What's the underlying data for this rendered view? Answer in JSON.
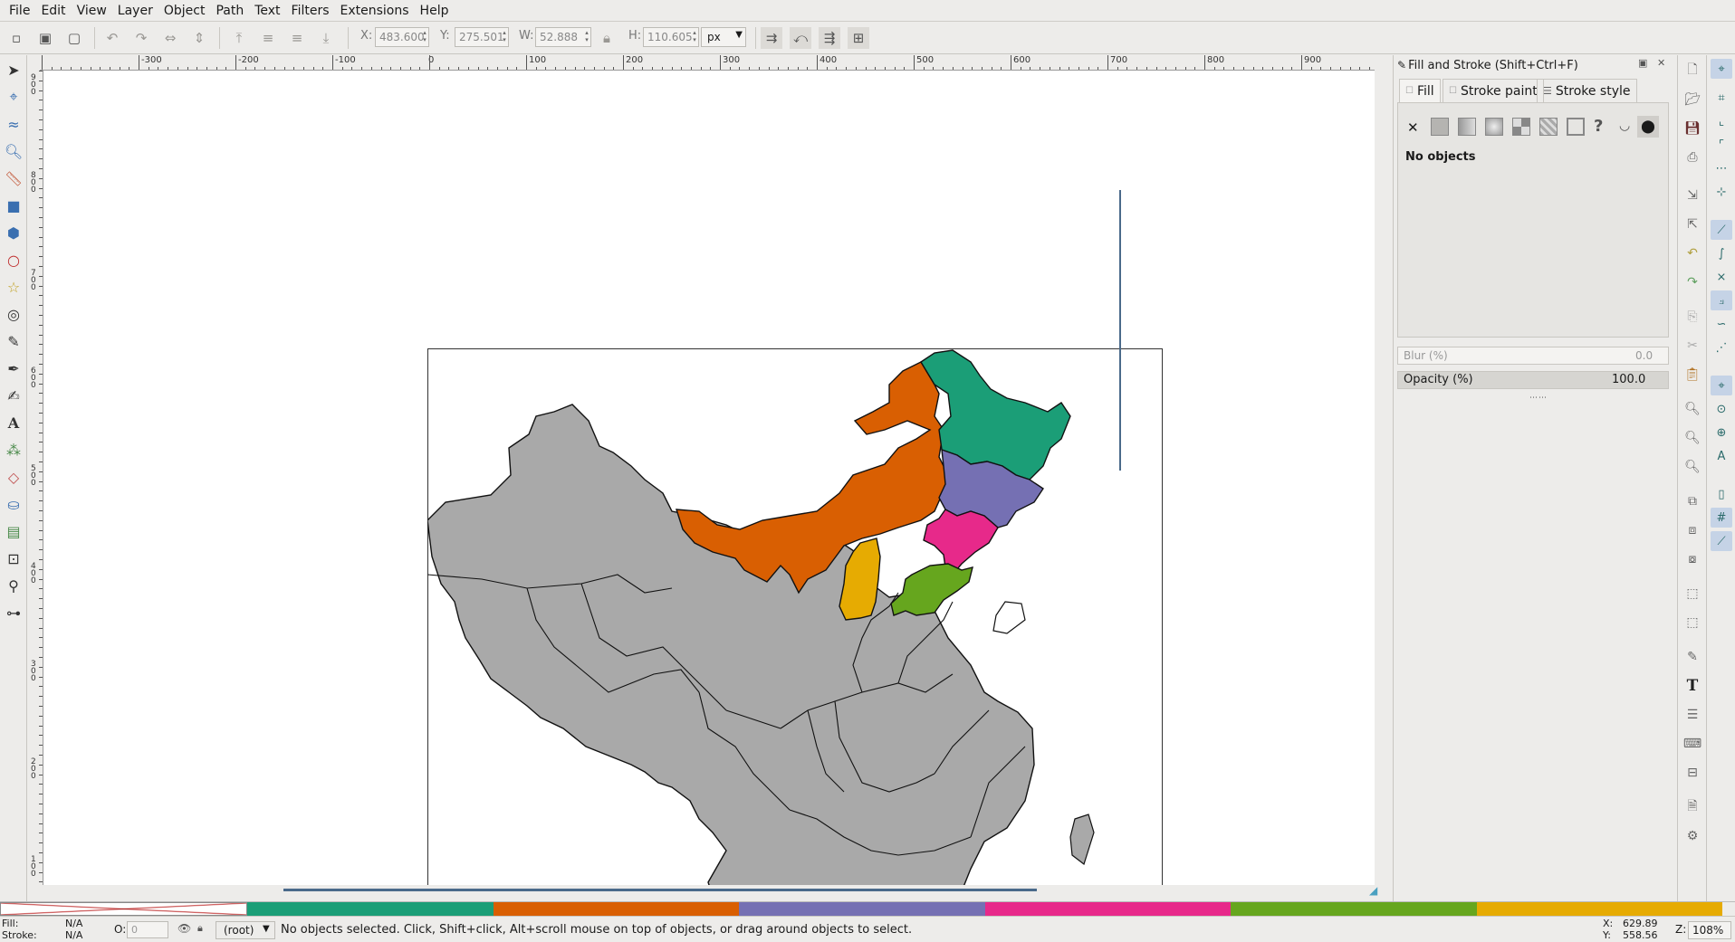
{
  "menubar": {
    "items": [
      "File",
      "Edit",
      "View",
      "Layer",
      "Object",
      "Path",
      "Text",
      "Filters",
      "Extensions",
      "Help"
    ]
  },
  "controls": {
    "x_label": "X:",
    "x_value": "483.600",
    "y_label": "Y:",
    "y_value": "275.501",
    "w_label": "W:",
    "w_value": "52.888",
    "h_label": "H:",
    "h_value": "110.605",
    "unit": "px"
  },
  "rulers": {
    "horizontal": [
      "-300",
      "-200",
      "-100",
      "0",
      "100",
      "200",
      "300",
      "400",
      "500",
      "600",
      "700",
      "800",
      "900"
    ],
    "vertical": [
      "9 0 0",
      "8 0 0",
      "7 0 0",
      "6 0 0",
      "5 0 0",
      "4 0 0",
      "3 0 0",
      "2 0 0",
      "1 0 0"
    ]
  },
  "panel": {
    "title": "Fill and Stroke (Shift+Ctrl+F)",
    "tabs": [
      "Fill",
      "Stroke paint",
      "Stroke style"
    ],
    "message": "No objects",
    "blur_label": "Blur (%)",
    "blur_value": "0.0",
    "opacity_label": "Opacity (%)",
    "opacity_value": "100.0"
  },
  "palette": {
    "colors": [
      "#1b9e77",
      "#d95f02",
      "#7570b3",
      "#e7298a",
      "#66a61e",
      "#e6ab02"
    ]
  },
  "map_colors": {
    "gray": "#a9a9a9",
    "teal": "#1b9e77",
    "orange": "#d95f02",
    "purple": "#7570b3",
    "pink": "#e7298a",
    "green": "#66a61e",
    "yellow": "#e6ab02"
  },
  "status": {
    "fill_label": "Fill:",
    "fill_value": "N/A",
    "stroke_label": "Stroke:",
    "stroke_value": "N/A",
    "opacity_label": "O:",
    "opacity_value": "0",
    "layer": "(root)",
    "message": "No objects selected. Click, Shift+click, Alt+scroll mouse on top of objects, or drag around objects to select.",
    "x_label": "X:",
    "x_value": "629.89",
    "y_label": "Y:",
    "y_value": "558.56",
    "z_label": "Z:",
    "zoom": "108%"
  }
}
